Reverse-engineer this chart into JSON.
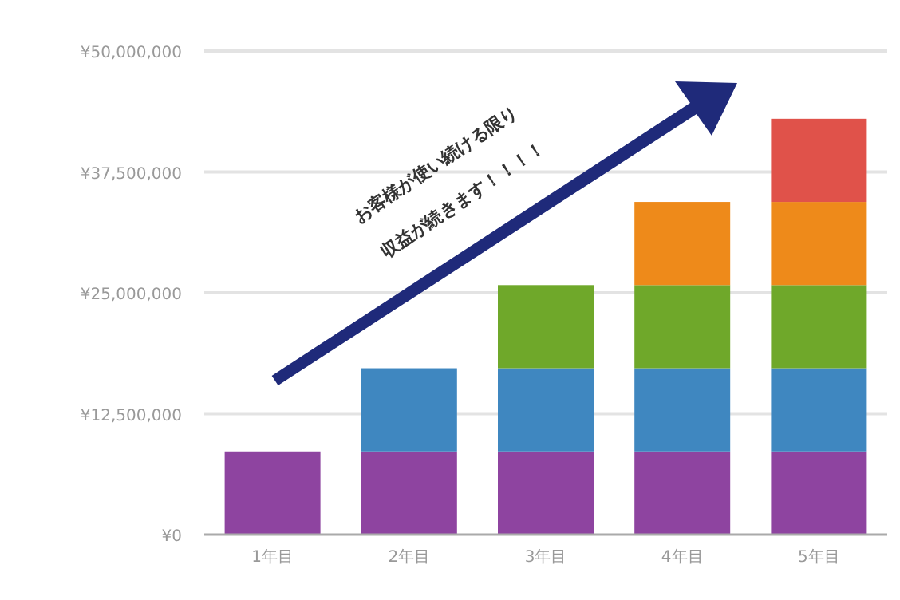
{
  "chart_data": {
    "type": "bar",
    "stacked": true,
    "categories": [
      "1年目",
      "2年目",
      "3年目",
      "4年目",
      "5年目"
    ],
    "series": [
      {
        "color": "#8e44a0",
        "values": [
          8600000,
          8600000,
          8600000,
          8600000,
          8600000
        ]
      },
      {
        "color": "#3f87c0",
        "values": [
          null,
          8600000,
          8600000,
          8600000,
          8600000
        ]
      },
      {
        "color": "#6fa82a",
        "values": [
          null,
          null,
          8600000,
          8600000,
          8600000
        ]
      },
      {
        "color": "#ee8a1a",
        "values": [
          null,
          null,
          null,
          8600000,
          8600000
        ]
      },
      {
        "color": "#e0524a",
        "values": [
          null,
          null,
          null,
          null,
          8600000
        ]
      }
    ],
    "ylim": [
      0,
      50000000
    ],
    "yticks": [
      {
        "value": 0,
        "label": "¥0"
      },
      {
        "value": 12500000,
        "label": "¥12,500,000"
      },
      {
        "value": 25000000,
        "label": "¥25,000,000"
      },
      {
        "value": 37500000,
        "label": "¥37,500,000"
      },
      {
        "value": 50000000,
        "label": "¥50,000,000"
      }
    ],
    "grid": "y",
    "annotations": [
      "お客様が使い続ける限り",
      "収益が続きます！！！！"
    ]
  }
}
